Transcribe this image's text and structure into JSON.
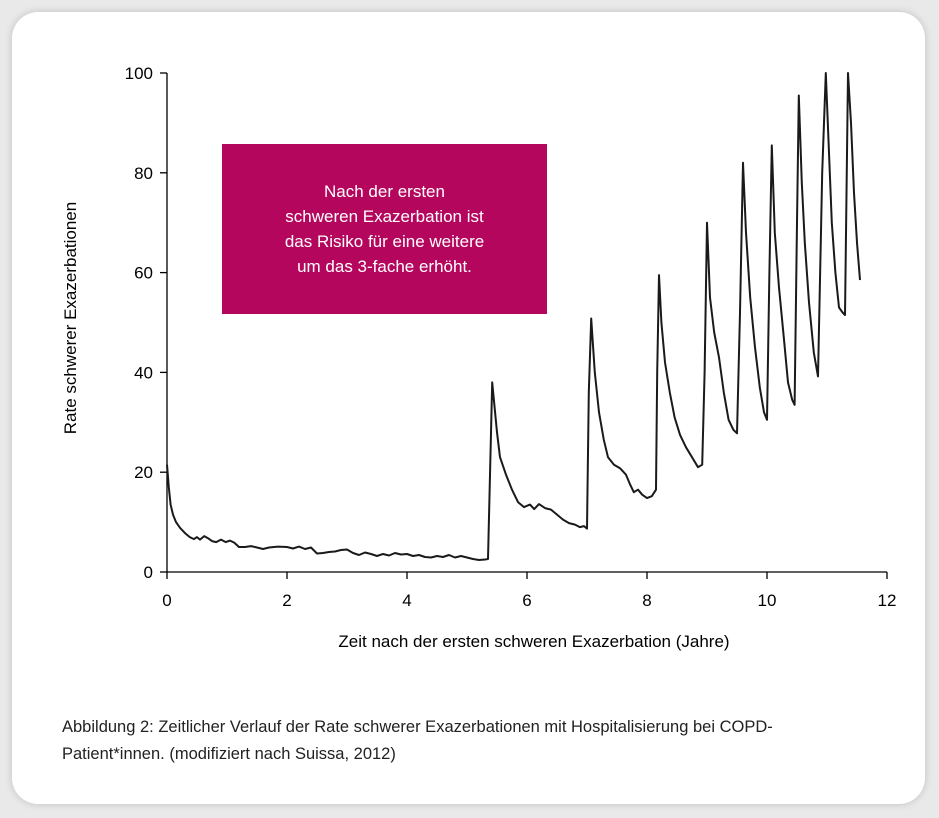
{
  "chart_data": {
    "type": "line",
    "xlabel": "Zeit nach der ersten schweren Exazerbation (Jahre)",
    "ylabel": "Rate schwerer Exazerbationen",
    "xlim": [
      0,
      12
    ],
    "ylim": [
      0,
      100
    ],
    "xticks": [
      0,
      2,
      4,
      6,
      8,
      10,
      12
    ],
    "yticks": [
      0,
      20,
      40,
      60,
      80,
      100
    ],
    "grid": false,
    "annotation": "Nach der ersten\nschweren Exazerbation ist\ndas Risiko für eine weitere\num das 3-fache erhöht.",
    "series": [
      {
        "color": "#1a1a1a",
        "points": [
          [
            0.0,
            21.5
          ],
          [
            0.03,
            17
          ],
          [
            0.06,
            13.5
          ],
          [
            0.1,
            11.5
          ],
          [
            0.15,
            10
          ],
          [
            0.22,
            8.8
          ],
          [
            0.3,
            7.8
          ],
          [
            0.38,
            7.0
          ],
          [
            0.45,
            6.6
          ],
          [
            0.5,
            7.0
          ],
          [
            0.55,
            6.5
          ],
          [
            0.62,
            7.2
          ],
          [
            0.68,
            6.8
          ],
          [
            0.75,
            6.2
          ],
          [
            0.82,
            6.0
          ],
          [
            0.9,
            6.5
          ],
          [
            0.98,
            6.0
          ],
          [
            1.05,
            6.3
          ],
          [
            1.12,
            5.9
          ],
          [
            1.2,
            5.0
          ],
          [
            1.3,
            5.0
          ],
          [
            1.4,
            5.2
          ],
          [
            1.5,
            4.9
          ],
          [
            1.6,
            4.6
          ],
          [
            1.7,
            4.9
          ],
          [
            1.85,
            5.1
          ],
          [
            2.0,
            5.0
          ],
          [
            2.1,
            4.7
          ],
          [
            2.2,
            5.1
          ],
          [
            2.3,
            4.6
          ],
          [
            2.4,
            4.9
          ],
          [
            2.5,
            3.7
          ],
          [
            2.6,
            3.8
          ],
          [
            2.7,
            4.0
          ],
          [
            2.8,
            4.1
          ],
          [
            2.9,
            4.4
          ],
          [
            3.0,
            4.5
          ],
          [
            3.1,
            3.8
          ],
          [
            3.2,
            3.4
          ],
          [
            3.3,
            3.9
          ],
          [
            3.4,
            3.6
          ],
          [
            3.5,
            3.2
          ],
          [
            3.6,
            3.6
          ],
          [
            3.7,
            3.3
          ],
          [
            3.8,
            3.8
          ],
          [
            3.9,
            3.5
          ],
          [
            4.0,
            3.6
          ],
          [
            4.1,
            3.2
          ],
          [
            4.2,
            3.4
          ],
          [
            4.3,
            3.0
          ],
          [
            4.4,
            2.9
          ],
          [
            4.5,
            3.2
          ],
          [
            4.6,
            3.0
          ],
          [
            4.7,
            3.4
          ],
          [
            4.8,
            2.9
          ],
          [
            4.9,
            3.2
          ],
          [
            5.0,
            2.9
          ],
          [
            5.1,
            2.6
          ],
          [
            5.2,
            2.4
          ],
          [
            5.3,
            2.5
          ],
          [
            5.35,
            2.6
          ],
          [
            5.42,
            38.0
          ],
          [
            5.5,
            28
          ],
          [
            5.55,
            23
          ],
          [
            5.65,
            19.5
          ],
          [
            5.75,
            16.5
          ],
          [
            5.85,
            14
          ],
          [
            5.95,
            13
          ],
          [
            6.05,
            13.5
          ],
          [
            6.12,
            12.6
          ],
          [
            6.2,
            13.6
          ],
          [
            6.3,
            12.8
          ],
          [
            6.4,
            12.5
          ],
          [
            6.5,
            11.5
          ],
          [
            6.6,
            10.5
          ],
          [
            6.7,
            9.8
          ],
          [
            6.8,
            9.5
          ],
          [
            6.88,
            9.0
          ],
          [
            6.95,
            9.2
          ],
          [
            7.0,
            8.7
          ],
          [
            7.03,
            36.0
          ],
          [
            7.07,
            50.8
          ],
          [
            7.13,
            40
          ],
          [
            7.2,
            32
          ],
          [
            7.28,
            26.5
          ],
          [
            7.35,
            23
          ],
          [
            7.45,
            21.5
          ],
          [
            7.55,
            20.8
          ],
          [
            7.65,
            19.5
          ],
          [
            7.72,
            17.5
          ],
          [
            7.78,
            16
          ],
          [
            7.85,
            16.5
          ],
          [
            7.92,
            15.5
          ],
          [
            8.0,
            14.8
          ],
          [
            8.08,
            15.2
          ],
          [
            8.15,
            16.5
          ],
          [
            8.17,
            40
          ],
          [
            8.2,
            59.5
          ],
          [
            8.24,
            50
          ],
          [
            8.3,
            42
          ],
          [
            8.38,
            36
          ],
          [
            8.46,
            31
          ],
          [
            8.55,
            27.5
          ],
          [
            8.65,
            25
          ],
          [
            8.75,
            23
          ],
          [
            8.85,
            21
          ],
          [
            8.92,
            21.5
          ],
          [
            8.96,
            40
          ],
          [
            9.0,
            70.0
          ],
          [
            9.05,
            55
          ],
          [
            9.12,
            48
          ],
          [
            9.2,
            43
          ],
          [
            9.28,
            36
          ],
          [
            9.36,
            30.5
          ],
          [
            9.44,
            28.5
          ],
          [
            9.5,
            27.8
          ],
          [
            9.55,
            52
          ],
          [
            9.6,
            82.0
          ],
          [
            9.65,
            68
          ],
          [
            9.72,
            55
          ],
          [
            9.8,
            45
          ],
          [
            9.88,
            37
          ],
          [
            9.95,
            32
          ],
          [
            10.0,
            30.5
          ],
          [
            10.04,
            60
          ],
          [
            10.08,
            85.5
          ],
          [
            10.13,
            68
          ],
          [
            10.2,
            57
          ],
          [
            10.28,
            47
          ],
          [
            10.35,
            38
          ],
          [
            10.42,
            34.5
          ],
          [
            10.46,
            33.5
          ],
          [
            10.5,
            70
          ],
          [
            10.53,
            95.5
          ],
          [
            10.58,
            78
          ],
          [
            10.63,
            66
          ],
          [
            10.7,
            54
          ],
          [
            10.78,
            44
          ],
          [
            10.85,
            39.2
          ],
          [
            10.92,
            80
          ],
          [
            10.98,
            100.0
          ],
          [
            11.03,
            85
          ],
          [
            11.08,
            70
          ],
          [
            11.14,
            60
          ],
          [
            11.2,
            53
          ],
          [
            11.26,
            52
          ],
          [
            11.3,
            51.5
          ],
          [
            11.35,
            100.0
          ],
          [
            11.4,
            90
          ],
          [
            11.45,
            76
          ],
          [
            11.5,
            66
          ],
          [
            11.55,
            58.5
          ]
        ]
      }
    ]
  },
  "caption": "Abbildung 2: Zeitlicher Verlauf der Rate schwerer Exazerbationen mit Hospitalisierung bei COPD-Patient*innen. (modifiziert nach Suissa, 2012)"
}
